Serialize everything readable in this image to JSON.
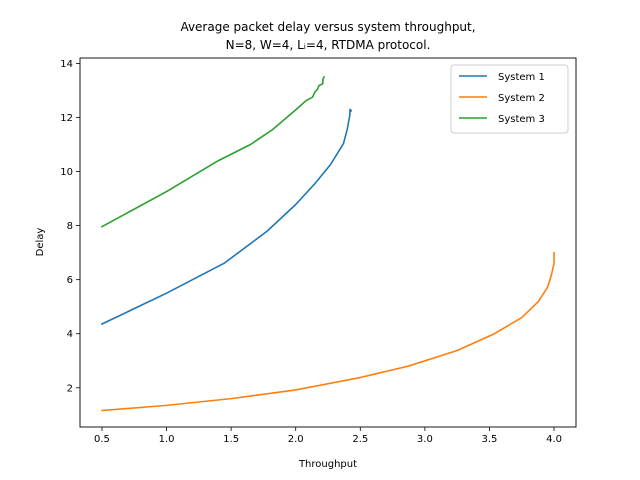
{
  "chart_data": {
    "type": "line",
    "title": "Average packet delay versus system throughput,",
    "subtitle": "N=8, W=4, Lᵢ=4, RTDMA protocol.",
    "xlabel": "Throughput",
    "ylabel": "Delay",
    "xlim": [
      0.33,
      4.17
    ],
    "ylim": [
      0.55,
      14.2
    ],
    "xticks": [
      0.5,
      1.0,
      1.5,
      2.0,
      2.5,
      3.0,
      3.5,
      4.0
    ],
    "xtick_labels": [
      "0.5",
      "1.0",
      "1.5",
      "2.0",
      "2.5",
      "3.0",
      "3.5",
      "4.0"
    ],
    "yticks": [
      2,
      4,
      6,
      8,
      10,
      12,
      14
    ],
    "ytick_labels": [
      "2",
      "4",
      "6",
      "8",
      "10",
      "12",
      "14"
    ],
    "grid": false,
    "legend_position": "top-right",
    "series": [
      {
        "name": "System 1",
        "color": "#1f77b4",
        "x": [
          0.5,
          1.0,
          1.45,
          1.78,
          2.0,
          2.15,
          2.27,
          2.37,
          2.4,
          2.41,
          2.42,
          2.42,
          2.43,
          2.42
        ],
        "y": [
          4.36,
          5.5,
          6.62,
          7.8,
          8.78,
          9.56,
          10.26,
          11.04,
          11.58,
          11.85,
          12.12,
          12.3,
          12.25,
          12.2
        ]
      },
      {
        "name": "System 2",
        "color": "#ff7f0e",
        "x": [
          0.5,
          1.0,
          1.5,
          2.0,
          2.5,
          2.87,
          3.25,
          3.53,
          3.75,
          3.88,
          3.95,
          3.98,
          3.99,
          4.0,
          4.0
        ],
        "y": [
          1.16,
          1.35,
          1.6,
          1.92,
          2.38,
          2.8,
          3.38,
          3.98,
          4.6,
          5.2,
          5.72,
          6.18,
          6.4,
          6.6,
          7.0
        ]
      },
      {
        "name": "System 3",
        "color": "#2ca02c",
        "x": [
          0.5,
          1.0,
          1.4,
          1.65,
          1.82,
          2.0,
          2.08,
          2.13,
          2.15,
          2.17,
          2.18,
          2.19,
          2.21,
          2.21,
          2.22
        ],
        "y": [
          7.96,
          9.26,
          10.4,
          11.0,
          11.55,
          12.28,
          12.62,
          12.75,
          12.95,
          13.05,
          13.18,
          13.2,
          13.25,
          13.4,
          13.5
        ]
      }
    ]
  }
}
